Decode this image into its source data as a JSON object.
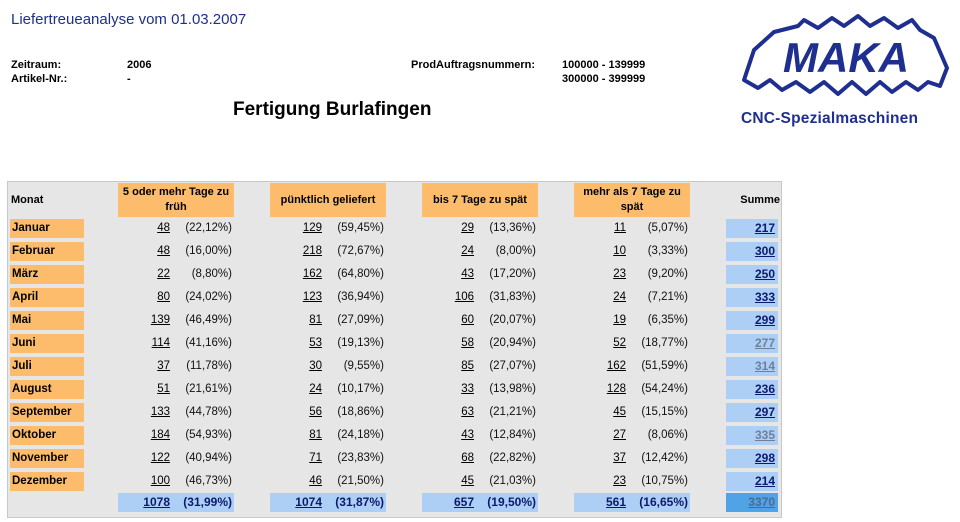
{
  "header": {
    "title": "Liefertreueanalyse vom 01.03.2007",
    "period_label": "Zeitraum:",
    "period_value": "2006",
    "article_label": "Artikel-Nr.:",
    "article_value": "-",
    "orders_label": "ProdAuftragsnummern:",
    "orders_range_1": "100000 - 139999",
    "orders_range_2": "300000 - 399999",
    "plant": "Fertigung Burlafingen"
  },
  "logo": {
    "brand": "MAKA",
    "subtitle": "CNC-Spezialmaschinen",
    "color": "#1e2f8f"
  },
  "table": {
    "col_month": "Monat",
    "col_early": "5 oder mehr Tage zu früh",
    "col_ontime": "pünktlich geliefert",
    "col_late7": "bis 7 Tage zu spät",
    "col_late_more": "mehr als 7 Tage zu spät",
    "col_sum": "Summe",
    "rows": [
      {
        "month": "Januar",
        "early": "48",
        "early_pct": "(22,12%)",
        "ontime": "129",
        "ontime_pct": "(59,45%)",
        "late7": "29",
        "late7_pct": "(13,36%)",
        "late_more": "11",
        "late_more_pct": "(5,07%)",
        "sum": "217"
      },
      {
        "month": "Februar",
        "early": "48",
        "early_pct": "(16,00%)",
        "ontime": "218",
        "ontime_pct": "(72,67%)",
        "late7": "24",
        "late7_pct": "(8,00%)",
        "late_more": "10",
        "late_more_pct": "(3,33%)",
        "sum": "300"
      },
      {
        "month": "März",
        "early": "22",
        "early_pct": "(8,80%)",
        "ontime": "162",
        "ontime_pct": "(64,80%)",
        "late7": "43",
        "late7_pct": "(17,20%)",
        "late_more": "23",
        "late_more_pct": "(9,20%)",
        "sum": "250"
      },
      {
        "month": "April",
        "early": "80",
        "early_pct": "(24,02%)",
        "ontime": "123",
        "ontime_pct": "(36,94%)",
        "late7": "106",
        "late7_pct": "(31,83%)",
        "late_more": "24",
        "late_more_pct": "(7,21%)",
        "sum": "333"
      },
      {
        "month": "Mai",
        "early": "139",
        "early_pct": "(46,49%)",
        "ontime": "81",
        "ontime_pct": "(27,09%)",
        "late7": "60",
        "late7_pct": "(20,07%)",
        "late_more": "19",
        "late_more_pct": "(6,35%)",
        "sum": "299"
      },
      {
        "month": "Juni",
        "early": "114",
        "early_pct": "(41,16%)",
        "ontime": "53",
        "ontime_pct": "(19,13%)",
        "late7": "58",
        "late7_pct": "(20,94%)",
        "late_more": "52",
        "late_more_pct": "(18,77%)",
        "sum": "277",
        "visited": true
      },
      {
        "month": "Juli",
        "early": "37",
        "early_pct": "(11,78%)",
        "ontime": "30",
        "ontime_pct": "(9,55%)",
        "late7": "85",
        "late7_pct": "(27,07%)",
        "late_more": "162",
        "late_more_pct": "(51,59%)",
        "sum": "314",
        "visited": true
      },
      {
        "month": "August",
        "early": "51",
        "early_pct": "(21,61%)",
        "ontime": "24",
        "ontime_pct": "(10,17%)",
        "late7": "33",
        "late7_pct": "(13,98%)",
        "late_more": "128",
        "late_more_pct": "(54,24%)",
        "sum": "236"
      },
      {
        "month": "September",
        "early": "133",
        "early_pct": "(44,78%)",
        "ontime": "56",
        "ontime_pct": "(18,86%)",
        "late7": "63",
        "late7_pct": "(21,21%)",
        "late_more": "45",
        "late_more_pct": "(15,15%)",
        "sum": "297"
      },
      {
        "month": "Oktober",
        "early": "184",
        "early_pct": "(54,93%)",
        "ontime": "81",
        "ontime_pct": "(24,18%)",
        "late7": "43",
        "late7_pct": "(12,84%)",
        "late_more": "27",
        "late_more_pct": "(8,06%)",
        "sum": "335",
        "visited": true
      },
      {
        "month": "November",
        "early": "122",
        "early_pct": "(40,94%)",
        "ontime": "71",
        "ontime_pct": "(23,83%)",
        "late7": "68",
        "late7_pct": "(22,82%)",
        "late_more": "37",
        "late_more_pct": "(12,42%)",
        "sum": "298"
      },
      {
        "month": "Dezember",
        "early": "100",
        "early_pct": "(46,73%)",
        "ontime": "46",
        "ontime_pct": "(21,50%)",
        "late7": "45",
        "late7_pct": "(21,03%)",
        "late_more": "23",
        "late_more_pct": "(10,75%)",
        "sum": "214"
      }
    ],
    "totals": {
      "early": "1078",
      "early_pct": "(31,99%)",
      "ontime": "1074",
      "ontime_pct": "(31,87%)",
      "late7": "657",
      "late7_pct": "(19,50%)",
      "late_more": "561",
      "late_more_pct": "(16,65%)",
      "sum": "3370"
    }
  },
  "colors": {
    "header_orange": "#fcbc6b",
    "sum_blue": "#aecff5",
    "grand_total_blue": "#4fa3e6",
    "grid_gray": "#e6e6e6"
  }
}
